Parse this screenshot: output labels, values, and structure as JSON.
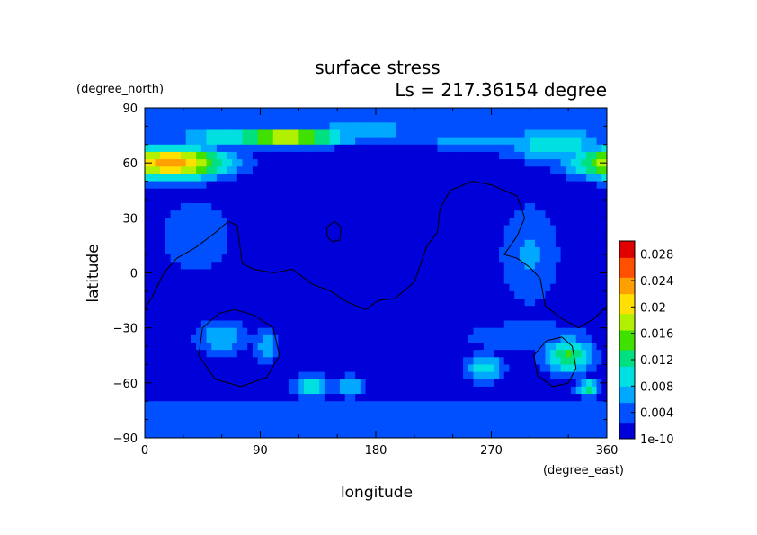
{
  "chart_data": {
    "type": "heatmap",
    "title": "surface stress",
    "subtitle": "Ls = 217.36154 degree",
    "xlabel": "longitude",
    "ylabel": "latitude",
    "xunit": "(degree_east)",
    "yunit": "(degree_north)",
    "xlim": [
      0,
      360
    ],
    "ylim": [
      -90,
      90
    ],
    "xticks": [
      "0",
      "90",
      "180",
      "270",
      "360"
    ],
    "yticks": [
      "90",
      "60",
      "30",
      "0",
      "−30",
      "−60",
      "−90"
    ],
    "colorbar": {
      "min": 0,
      "max": 0.03,
      "labels": [
        "0.028",
        "0.024",
        "0.02",
        "0.016",
        "0.012",
        "0.008",
        "0.004",
        "1e-10"
      ],
      "label_values": [
        0.028,
        0.024,
        0.02,
        0.016,
        0.012,
        0.008,
        0.004,
        0
      ]
    },
    "background_value": 0.002,
    "blobs": [
      {
        "lon": 20,
        "lat": 60,
        "rlon": 45,
        "rlat": 9,
        "value": 0.024
      },
      {
        "lon": 20,
        "lat": 60,
        "rlon": 10,
        "rlat": 3,
        "value": 0.012
      },
      {
        "lon": 110,
        "lat": 74,
        "rlon": 50,
        "rlat": 5,
        "value": 0.02
      },
      {
        "lon": 60,
        "lat": 74,
        "rlon": 40,
        "rlat": 6,
        "value": 0.01
      },
      {
        "lon": 170,
        "lat": 78,
        "rlon": 50,
        "rlat": 6,
        "value": 0.008
      },
      {
        "lon": 260,
        "lat": 72,
        "rlon": 50,
        "rlat": 5,
        "value": 0.008
      },
      {
        "lon": 320,
        "lat": 70,
        "rlon": 45,
        "rlat": 10,
        "value": 0.01
      },
      {
        "lon": 350,
        "lat": 62,
        "rlon": 14,
        "rlat": 8,
        "value": 0.012
      },
      {
        "lon": 300,
        "lat": 10,
        "rlon": 25,
        "rlat": 30,
        "value": 0.006
      },
      {
        "lon": 40,
        "lat": 20,
        "rlon": 40,
        "rlat": 30,
        "value": 0.004
      },
      {
        "lon": 130,
        "lat": -62,
        "rlon": 14,
        "rlat": 6,
        "value": 0.012
      },
      {
        "lon": 160,
        "lat": -62,
        "rlon": 12,
        "rlat": 6,
        "value": 0.008
      },
      {
        "lon": 265,
        "lat": -52,
        "rlon": 16,
        "rlat": 8,
        "value": 0.01
      },
      {
        "lon": 330,
        "lat": -45,
        "rlon": 20,
        "rlat": 10,
        "value": 0.014
      },
      {
        "lon": 345,
        "lat": -63,
        "rlon": 10,
        "rlat": 5,
        "value": 0.012
      },
      {
        "lon": 60,
        "lat": -35,
        "rlon": 22,
        "rlat": 10,
        "value": 0.008
      },
      {
        "lon": 95,
        "lat": -40,
        "rlon": 10,
        "rlat": 10,
        "value": 0.008
      },
      {
        "lon": 300,
        "lat": -35,
        "rlon": 60,
        "rlat": 10,
        "value": 0.005
      }
    ],
    "colormap": [
      "#0000d8",
      "#0050ff",
      "#00a8ff",
      "#00e0e0",
      "#00e080",
      "#40e000",
      "#b0f000",
      "#ffe000",
      "#ffa000",
      "#ff5000",
      "#e00000",
      "#ffffff"
    ],
    "contours": [
      [
        [
          0,
          -20
        ],
        [
          8,
          -10
        ],
        [
          15,
          0
        ],
        [
          25,
          8
        ],
        [
          40,
          14
        ],
        [
          55,
          22
        ],
        [
          65,
          28
        ],
        [
          72,
          26
        ],
        [
          74,
          15
        ],
        [
          76,
          5
        ],
        [
          85,
          2
        ],
        [
          100,
          0
        ],
        [
          115,
          2
        ],
        [
          130,
          -6
        ],
        [
          145,
          -10
        ],
        [
          158,
          -16
        ],
        [
          172,
          -20
        ],
        [
          182,
          -15
        ],
        [
          195,
          -14
        ],
        [
          210,
          -5
        ],
        [
          220,
          15
        ],
        [
          228,
          22
        ],
        [
          230,
          35
        ],
        [
          238,
          45
        ],
        [
          255,
          50
        ],
        [
          270,
          48
        ],
        [
          290,
          42
        ],
        [
          296,
          30
        ],
        [
          290,
          20
        ],
        [
          280,
          10
        ],
        [
          290,
          8
        ],
        [
          300,
          3
        ],
        [
          308,
          -3
        ],
        [
          312,
          -18
        ],
        [
          325,
          -25
        ],
        [
          338,
          -30
        ],
        [
          350,
          -25
        ],
        [
          360,
          -18
        ]
      ],
      [
        [
          142,
          20
        ],
        [
          142,
          25
        ],
        [
          148,
          28
        ],
        [
          153,
          25
        ],
        [
          152,
          18
        ],
        [
          146,
          17
        ],
        [
          142,
          20
        ]
      ],
      [
        [
          70,
          -20
        ],
        [
          85,
          -23
        ],
        [
          100,
          -30
        ],
        [
          105,
          -45
        ],
        [
          95,
          -57
        ],
        [
          75,
          -62
        ],
        [
          55,
          -58
        ],
        [
          42,
          -45
        ],
        [
          45,
          -30
        ],
        [
          58,
          -22
        ],
        [
          70,
          -20
        ]
      ],
      [
        [
          325,
          -35
        ],
        [
          333,
          -40
        ],
        [
          336,
          -52
        ],
        [
          330,
          -60
        ],
        [
          318,
          -62
        ],
        [
          306,
          -56
        ],
        [
          303,
          -45
        ],
        [
          313,
          -37
        ],
        [
          325,
          -35
        ]
      ]
    ]
  }
}
